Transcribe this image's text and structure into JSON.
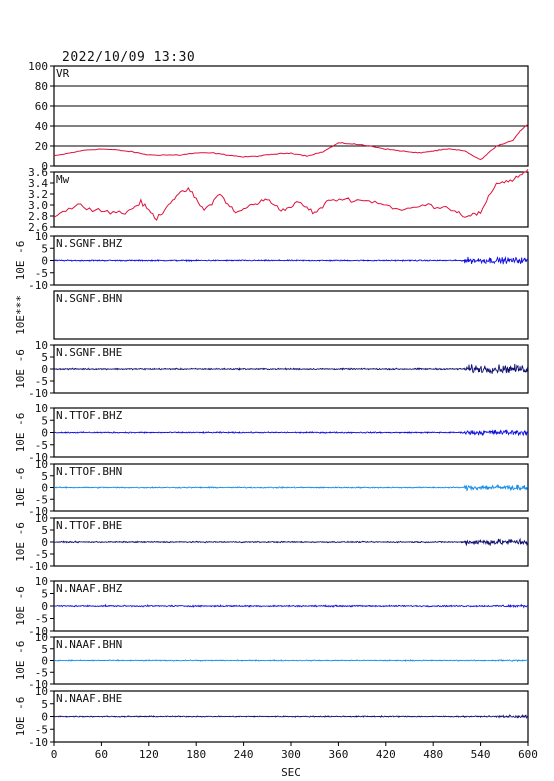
{
  "header": {
    "datetime": "2022/10/09  13:30"
  },
  "colors": {
    "frame": "#000000",
    "vr_mw": "#e0103c",
    "blue": "#1010e0",
    "navy": "#101070",
    "light_blue": "#1a8ee8"
  },
  "chart_data": [
    {
      "type": "line",
      "panel": "VR",
      "label": "VR",
      "ylim": [
        0,
        100
      ],
      "yticks": [
        "100",
        "80",
        "60",
        "40",
        "20",
        "0"
      ],
      "grid": true,
      "color": "#e0103c",
      "x": [
        0,
        20,
        40,
        60,
        80,
        100,
        120,
        140,
        160,
        180,
        200,
        220,
        240,
        260,
        280,
        300,
        320,
        340,
        360,
        380,
        400,
        420,
        440,
        460,
        480,
        500,
        520,
        540,
        560,
        580,
        590,
        600
      ],
      "values": [
        10,
        13,
        16,
        17,
        16,
        14,
        11,
        11,
        11,
        13,
        13,
        11,
        9,
        10,
        12,
        13,
        10,
        14,
        23,
        22,
        20,
        17,
        15,
        13,
        15,
        17,
        15,
        6,
        20,
        25,
        35,
        42
      ]
    },
    {
      "type": "line",
      "panel": "Mw",
      "label": "Mw",
      "ylim": [
        2.6,
        3.6
      ],
      "yticks": [
        "3.6",
        "3.4",
        "3.2",
        "3.0",
        "2.8",
        "2.6"
      ],
      "color": "#e0103c",
      "x": [
        0,
        30,
        60,
        90,
        110,
        130,
        150,
        170,
        190,
        210,
        230,
        250,
        270,
        290,
        310,
        330,
        350,
        380,
        410,
        440,
        470,
        500,
        520,
        540,
        560,
        580,
        600
      ],
      "values": [
        2.8,
        3.0,
        2.9,
        2.85,
        3.05,
        2.75,
        3.1,
        3.3,
        2.9,
        3.2,
        2.85,
        3.0,
        3.1,
        2.9,
        3.05,
        2.85,
        3.1,
        3.1,
        3.05,
        2.9,
        3.0,
        2.95,
        2.8,
        2.85,
        3.4,
        3.45,
        3.65
      ]
    },
    {
      "type": "line",
      "panel": "waveform",
      "label": "N.SGNF.BHZ",
      "ylabel": "10E -6",
      "ylim": [
        -10,
        10
      ],
      "yticks": [
        "10",
        "5",
        "0",
        "-5",
        "-10"
      ],
      "color": "#1010e0",
      "amplitude": [
        0.35,
        1.8
      ],
      "burst_start": 520
    },
    {
      "type": "line",
      "panel": "waveform",
      "label": "N.SGNF.BHN",
      "ylabel": "10E***",
      "ylim": [],
      "yticks": [],
      "color": "#1010e0",
      "amplitude": [
        0,
        0
      ],
      "burst_start": null
    },
    {
      "type": "line",
      "panel": "waveform",
      "label": "N.SGNF.BHE",
      "ylabel": "10E -6",
      "ylim": [
        -10,
        10
      ],
      "yticks": [
        "10",
        "5",
        "0",
        "-5",
        "-10"
      ],
      "color": "#101070",
      "amplitude": [
        0.4,
        2.5
      ],
      "burst_start": 520
    },
    {
      "type": "line",
      "panel": "waveform",
      "label": "N.TTOF.BHZ",
      "ylabel": "10E -6",
      "ylim": [
        -10,
        10
      ],
      "yticks": [
        "10",
        "5",
        "0",
        "-5",
        "-10"
      ],
      "color": "#1010e0",
      "amplitude": [
        0.35,
        1.5
      ],
      "burst_start": 520
    },
    {
      "type": "line",
      "panel": "waveform",
      "label": "N.TTOF.BHN",
      "ylabel": "10E -6",
      "ylim": [
        -10,
        10
      ],
      "yticks": [
        "10",
        "5",
        "0",
        "-5",
        "-10"
      ],
      "color": "#1a8ee8",
      "amplitude": [
        0.35,
        1.6
      ],
      "burst_start": 520
    },
    {
      "type": "line",
      "panel": "waveform",
      "label": "N.TTOF.BHE",
      "ylabel": "10E -6",
      "ylim": [
        -10,
        10
      ],
      "yticks": [
        "10",
        "5",
        "0",
        "-5",
        "-10"
      ],
      "color": "#101070",
      "amplitude": [
        0.35,
        1.8
      ],
      "burst_start": 520
    },
    {
      "type": "line",
      "panel": "waveform",
      "label": "N.NAAF.BHZ",
      "ylabel": "10E -6",
      "ylim": [
        -10,
        10
      ],
      "yticks": [
        "10",
        "5",
        "0",
        "-5",
        "-10"
      ],
      "color": "#1010e0",
      "amplitude": [
        0.4,
        0.7
      ],
      "burst_start": 560
    },
    {
      "type": "line",
      "panel": "waveform",
      "label": "N.NAAF.BHN",
      "ylabel": "10E -6",
      "ylim": [
        -10,
        10
      ],
      "yticks": [
        "10",
        "5",
        "0",
        "-5",
        "-10"
      ],
      "color": "#1a8ee8",
      "amplitude": [
        0.3,
        0.5
      ],
      "burst_start": 560
    },
    {
      "type": "line",
      "panel": "waveform",
      "label": "N.NAAF.BHE",
      "ylabel": "10E -6",
      "ylim": [
        -10,
        10
      ],
      "yticks": [
        "10",
        "5",
        "0",
        "-5",
        "-10"
      ],
      "color": "#101070",
      "amplitude": [
        0.3,
        0.8
      ],
      "burst_start": 560
    }
  ],
  "x_axis": {
    "label": "SEC",
    "xlim": [
      0,
      600
    ],
    "ticks": [
      "0",
      "60",
      "120",
      "180",
      "240",
      "300",
      "360",
      "420",
      "480",
      "540",
      "600"
    ]
  }
}
